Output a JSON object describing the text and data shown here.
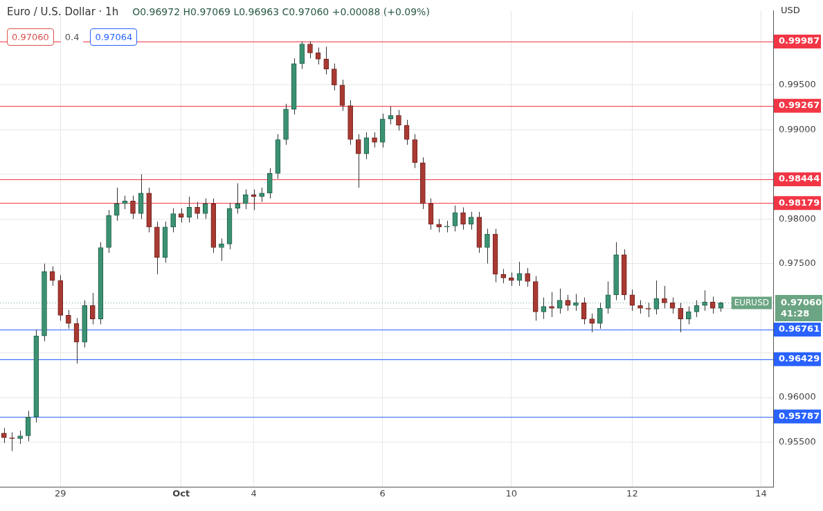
{
  "chart_data": {
    "type": "candlestick",
    "title": "Euro / U.S. Dollar · 1h",
    "subtitle": "O0.96972 H0.97069 L0.96963 C0.97060 +0.00088 (+0.09%)",
    "annotations": [
      "0.97060",
      "0.4",
      "0.97064",
      "USD",
      "0.97060",
      "41:28"
    ],
    "categories": [
      null,
      null,
      null,
      null,
      null,
      null,
      null,
      "29",
      null,
      null,
      null,
      null,
      null,
      null,
      null,
      null,
      null,
      null,
      null,
      null,
      null,
      null,
      "Oct",
      null,
      null,
      null,
      null,
      null,
      null,
      null,
      null,
      "4",
      null,
      null,
      null,
      null,
      null,
      null,
      null,
      null,
      null,
      null,
      null,
      null,
      null,
      null,
      null,
      "6",
      null,
      null,
      null,
      null,
      null,
      null,
      null,
      null,
      null,
      null,
      null,
      null,
      null,
      null,
      null,
      "10",
      null,
      null,
      null,
      null,
      null,
      null,
      null,
      null,
      null,
      null,
      null,
      null,
      null,
      null,
      "12",
      null,
      null,
      null,
      null,
      null,
      null,
      null,
      null,
      null,
      null,
      null,
      null,
      null,
      null,
      null,
      "14",
      null
    ],
    "ohlc": [
      [
        0.956,
        0.9566,
        0.9549,
        0.9555
      ],
      [
        0.9555,
        0.9561,
        0.954,
        0.9554
      ],
      [
        0.9554,
        0.9563,
        0.9548,
        0.9557
      ],
      [
        0.9557,
        0.9585,
        0.9551,
        0.9578
      ],
      [
        0.9578,
        0.9676,
        0.9572,
        0.9669
      ],
      [
        0.9669,
        0.975,
        0.9663,
        0.9741
      ],
      [
        0.9741,
        0.9747,
        0.9725,
        0.9731
      ],
      [
        0.9731,
        0.9737,
        0.9686,
        0.9692
      ],
      [
        0.9692,
        0.9698,
        0.9677,
        0.9683
      ],
      [
        0.9683,
        0.9689,
        0.9638,
        0.9662
      ],
      [
        0.9662,
        0.9709,
        0.9656,
        0.9703
      ],
      [
        0.9703,
        0.9717,
        0.9682,
        0.9688
      ],
      [
        0.9688,
        0.9774,
        0.9682,
        0.9768
      ],
      [
        0.9768,
        0.981,
        0.9762,
        0.9804
      ],
      [
        0.9804,
        0.9835,
        0.9798,
        0.9817
      ],
      [
        0.9817,
        0.9826,
        0.9811,
        0.982
      ],
      [
        0.982,
        0.9826,
        0.98,
        0.9806
      ],
      [
        0.9806,
        0.985,
        0.98,
        0.9829
      ],
      [
        0.9829,
        0.9835,
        0.9785,
        0.9791
      ],
      [
        0.9791,
        0.9797,
        0.9738,
        0.9757
      ],
      [
        0.9757,
        0.9797,
        0.9751,
        0.9791
      ],
      [
        0.9791,
        0.9812,
        0.9785,
        0.9806
      ],
      [
        0.9806,
        0.9812,
        0.9796,
        0.9802
      ],
      [
        0.9802,
        0.9825,
        0.9796,
        0.9813
      ],
      [
        0.9813,
        0.9819,
        0.98,
        0.9806
      ],
      [
        0.9806,
        0.9823,
        0.98,
        0.9817
      ],
      [
        0.9817,
        0.9823,
        0.9762,
        0.9768
      ],
      [
        0.9768,
        0.9778,
        0.9753,
        0.9772
      ],
      [
        0.9772,
        0.9818,
        0.9766,
        0.9812
      ],
      [
        0.9812,
        0.984,
        0.9806,
        0.9817
      ],
      [
        0.9817,
        0.9833,
        0.9811,
        0.9827
      ],
      [
        0.9827,
        0.9833,
        0.981,
        0.9825
      ],
      [
        0.9825,
        0.9835,
        0.9819,
        0.9829
      ],
      [
        0.9829,
        0.9857,
        0.9823,
        0.9851
      ],
      [
        0.9851,
        0.9895,
        0.9845,
        0.9889
      ],
      [
        0.9889,
        0.9929,
        0.9883,
        0.9923
      ],
      [
        0.9923,
        0.998,
        0.9917,
        0.9974
      ],
      [
        0.9974,
        0.9999,
        0.9968,
        0.9996
      ],
      [
        0.9996,
        0.9999,
        0.998,
        0.9986
      ],
      [
        0.9986,
        0.9992,
        0.9973,
        0.9979
      ],
      [
        0.9979,
        0.9993,
        0.9962,
        0.9968
      ],
      [
        0.9968,
        0.9974,
        0.9944,
        0.995
      ],
      [
        0.995,
        0.9956,
        0.9921,
        0.9927
      ],
      [
        0.9927,
        0.9933,
        0.9883,
        0.9889
      ],
      [
        0.9889,
        0.9895,
        0.9835,
        0.9873
      ],
      [
        0.9873,
        0.9897,
        0.9867,
        0.9891
      ],
      [
        0.9891,
        0.9897,
        0.988,
        0.9886
      ],
      [
        0.9886,
        0.9918,
        0.988,
        0.9912
      ],
      [
        0.9912,
        0.9926,
        0.9906,
        0.9916
      ],
      [
        0.9916,
        0.9922,
        0.9899,
        0.9905
      ],
      [
        0.9905,
        0.9911,
        0.9883,
        0.9889
      ],
      [
        0.9889,
        0.9895,
        0.9857,
        0.9863
      ],
      [
        0.9863,
        0.9869,
        0.9811,
        0.9817
      ],
      [
        0.9817,
        0.9823,
        0.9788,
        0.9794
      ],
      [
        0.9794,
        0.98,
        0.9785,
        0.9791
      ],
      [
        0.9791,
        0.9798,
        0.9785,
        0.9792
      ],
      [
        0.9792,
        0.9815,
        0.9786,
        0.9807
      ],
      [
        0.9807,
        0.9813,
        0.9788,
        0.9794
      ],
      [
        0.9794,
        0.9808,
        0.9788,
        0.9802
      ],
      [
        0.9802,
        0.9808,
        0.9762,
        0.9768
      ],
      [
        0.9768,
        0.9789,
        0.975,
        0.9783
      ],
      [
        0.9783,
        0.9789,
        0.9729,
        0.9738
      ],
      [
        0.9738,
        0.9744,
        0.9728,
        0.9734
      ],
      [
        0.9734,
        0.974,
        0.9725,
        0.9731
      ],
      [
        0.9731,
        0.9752,
        0.9725,
        0.9739
      ],
      [
        0.9739,
        0.9745,
        0.9724,
        0.973
      ],
      [
        0.973,
        0.9736,
        0.9686,
        0.9696
      ],
      [
        0.9696,
        0.9712,
        0.9688,
        0.9702
      ],
      [
        0.9702,
        0.9718,
        0.969,
        0.97
      ],
      [
        0.97,
        0.9722,
        0.9694,
        0.9709
      ],
      [
        0.9709,
        0.9715,
        0.9697,
        0.9703
      ],
      [
        0.9703,
        0.9716,
        0.9697,
        0.9706
      ],
      [
        0.9706,
        0.9712,
        0.9682,
        0.9688
      ],
      [
        0.9688,
        0.9694,
        0.9673,
        0.9683
      ],
      [
        0.9683,
        0.9706,
        0.9677,
        0.97
      ],
      [
        0.97,
        0.973,
        0.9694,
        0.9715
      ],
      [
        0.9715,
        0.9774,
        0.9709,
        0.976
      ],
      [
        0.976,
        0.9766,
        0.9709,
        0.9715
      ],
      [
        0.9715,
        0.9721,
        0.9697,
        0.9703
      ],
      [
        0.9703,
        0.9709,
        0.9694,
        0.97
      ],
      [
        0.97,
        0.9706,
        0.969,
        0.9699
      ],
      [
        0.9699,
        0.9731,
        0.9693,
        0.9711
      ],
      [
        0.9711,
        0.9725,
        0.97,
        0.9706
      ],
      [
        0.9706,
        0.9712,
        0.9694,
        0.97
      ],
      [
        0.97,
        0.9706,
        0.9673,
        0.9688
      ],
      [
        0.9688,
        0.9702,
        0.9682,
        0.9696
      ],
      [
        0.9696,
        0.9709,
        0.969,
        0.9703
      ],
      [
        0.9703,
        0.972,
        0.9697,
        0.9707
      ],
      [
        0.9707,
        0.9713,
        0.9694,
        0.97
      ],
      [
        0.97,
        0.9707,
        0.9696,
        0.9706
      ],
      null,
      null,
      null,
      null,
      null,
      null
    ],
    "ylim": [
      0.95,
      1.0033
    ],
    "yticks": [
      {
        "value": 0.955,
        "label": "0.95500"
      },
      {
        "value": 0.96,
        "label": "0.96000"
      },
      {
        "value": 0.965,
        "label": null
      },
      {
        "value": 0.97,
        "label": null
      },
      {
        "value": 0.975,
        "label": "0.97500"
      },
      {
        "value": 0.98,
        "label": "0.98000"
      },
      {
        "value": 0.985,
        "label": null
      },
      {
        "value": 0.99,
        "label": "0.99000"
      },
      {
        "value": 0.995,
        "label": "0.99500"
      }
    ],
    "grid": true,
    "ref_lines": [
      {
        "axis": "y",
        "value": 0.99987,
        "label": "0.99987",
        "color": "#f23645"
      },
      {
        "axis": "y",
        "value": 0.99267,
        "label": "0.99267",
        "color": "#f23645"
      },
      {
        "axis": "y",
        "value": 0.98444,
        "label": "0.98444",
        "color": "#f23645"
      },
      {
        "axis": "y",
        "value": 0.98179,
        "label": "0.98179",
        "color": "#f23645"
      },
      {
        "axis": "y",
        "value": 0.96761,
        "label": "0.96761",
        "color": "#2962ff"
      },
      {
        "axis": "y",
        "value": 0.96429,
        "label": "0.96429",
        "color": "#2962ff"
      },
      {
        "axis": "y",
        "value": 0.95787,
        "label": "0.95787",
        "color": "#2962ff"
      },
      {
        "axis": "y",
        "value": 0.9706,
        "label": "EURUSD",
        "color": "#6ba583",
        "line_style": "dotted"
      }
    ]
  }
}
